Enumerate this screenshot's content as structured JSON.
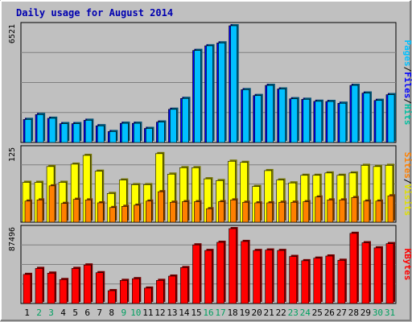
{
  "chart_data": {
    "type": "bar",
    "title": "Daily usage for August 2014",
    "categories": [
      "1",
      "2",
      "3",
      "4",
      "5",
      "6",
      "7",
      "8",
      "9",
      "10",
      "11",
      "12",
      "13",
      "14",
      "15",
      "16",
      "17",
      "18",
      "19",
      "20",
      "21",
      "22",
      "23",
      "24",
      "25",
      "26",
      "27",
      "28",
      "29",
      "30",
      "31"
    ],
    "weekend_days": [
      "2",
      "3",
      "9",
      "10",
      "16",
      "17",
      "23",
      "24",
      "30",
      "31"
    ],
    "panels": [
      {
        "y_max_label": "6521",
        "ylim": [
          0,
          6521
        ],
        "series": [
          {
            "name": "Hits",
            "color": "#00c0ff",
            "values": [
              1286,
              1560,
              1352,
              1051,
              1051,
              1240,
              931,
              610,
              1072,
              1072,
              786,
              1140,
              1853,
              2460,
              5140,
              5400,
              5560,
              6521,
              2950,
              2620,
              3190,
              2990,
              2440,
              2410,
              2300,
              2290,
              2190,
              3190,
              2760,
              2350,
              2670
            ]
          },
          {
            "name": "Files",
            "color": "#0000ff",
            "values": [
              1286,
              1560,
              1352,
              1051,
              1051,
              1240,
              931,
              610,
              1072,
              1072,
              786,
              1140,
              1853,
              2460,
              5140,
              5400,
              5560,
              6521,
              2950,
              2620,
              3190,
              2990,
              2440,
              2410,
              2300,
              2290,
              2190,
              3190,
              2760,
              2350,
              2670
            ]
          },
          {
            "name": "Pages",
            "color": "#00e0e0",
            "values": []
          }
        ],
        "label_segments": [
          {
            "text": "Pages",
            "color": "#00c0ff"
          },
          {
            "text": "/",
            "color": "#000000"
          },
          {
            "text": "Files",
            "color": "#0000ff"
          },
          {
            "text": "/",
            "color": "#000000"
          },
          {
            "text": "Hits",
            "color": "#00c0a0"
          }
        ]
      },
      {
        "y_max_label": "125",
        "ylim": [
          0,
          125
        ],
        "series": [
          {
            "name": "Visits",
            "color": "#ffff00",
            "values": [
              68,
              68,
              95,
              68,
              99,
              114,
              87,
              49,
              72,
              64,
              64,
              117,
              82,
              93,
              93,
              74,
              71,
              104,
              102,
              61,
              88,
              72,
              67,
              80,
              80,
              84,
              80,
              84,
              97,
              95,
              97
            ]
          },
          {
            "name": "Sites",
            "color": "#ff8000",
            "values": [
              36,
              38,
              62,
              32,
              39,
              38,
              33,
              25,
              27,
              29,
              36,
              52,
              34,
              35,
              35,
              23,
              35,
              38,
              34,
              33,
              33,
              34,
              34,
              35,
              43,
              38,
              38,
              42,
              36,
              36,
              45
            ]
          }
        ],
        "label_segments": [
          {
            "text": "Sites",
            "color": "#ff8000"
          },
          {
            "text": "/",
            "color": "#000000"
          },
          {
            "text": "Visits",
            "color": "#e0e000"
          }
        ]
      },
      {
        "y_max_label": "87496",
        "ylim": [
          0,
          87496
        ],
        "series": [
          {
            "name": "KBytes",
            "color": "#ff0000",
            "values": [
              34000,
              41000,
              35500,
              28000,
              41000,
              45000,
              36000,
              15000,
              27000,
              29000,
              18000,
              27000,
              32000,
              42000,
              68500,
              62000,
              71500,
              87496,
              72500,
              62000,
              62500,
              62000,
              55000,
              50000,
              53000,
              55500,
              50500,
              82000,
              71000,
              65000,
              70000
            ]
          }
        ],
        "label_segments": [
          {
            "text": "KBytes",
            "color": "#ff0000"
          }
        ]
      }
    ],
    "grid": true
  }
}
